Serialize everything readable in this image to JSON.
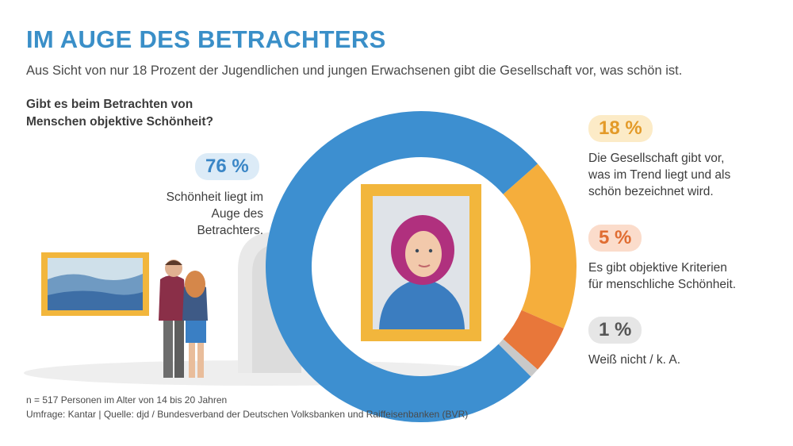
{
  "header": {
    "title": "IM AUGE DES BETRACHTERS",
    "subtitle": "Aus Sicht von nur 18 Prozent der Jugendlichen und jungen Erwachsenen gibt die Gesellschaft vor, was schön ist."
  },
  "question": {
    "line1": "Gibt es beim Betrachten von",
    "line2": "Menschen objektive Schönheit?"
  },
  "chart_data": {
    "type": "pie",
    "title": "",
    "slices": [
      {
        "label_value": "76 %",
        "value": 76,
        "desc": [
          "Schönheit liegt im",
          "Auge des Betrachters."
        ],
        "color": "#3d8fd0",
        "badge_bg": "#dcebf7",
        "badge_color": "#3a86c6"
      },
      {
        "label_value": "18 %",
        "value": 18,
        "desc": [
          "Die Gesellschaft gibt vor,",
          "was im Trend liegt und als",
          "schön bezeichnet wird."
        ],
        "color": "#f5ae3c",
        "badge_bg": "#fcebc7",
        "badge_color": "#e39a28"
      },
      {
        "label_value": "5 %",
        "value": 5,
        "desc": [
          "Es gibt objektive Kriterien",
          "für menschliche Schönheit."
        ],
        "color": "#e8773a",
        "badge_bg": "#fbdccb",
        "badge_color": "#e06d32"
      },
      {
        "label_value": "1 %",
        "value": 1,
        "desc": [
          "Weiß nicht / k. A."
        ],
        "color": "#c9c9c9",
        "badge_bg": "#e6e6e6",
        "badge_color": "#555555"
      }
    ]
  },
  "footer": {
    "line1": "n = 517 Personen im Alter von 14 bis 20 Jahren",
    "line2": "Umfrage: Kantar | Quelle: djd / Bundesverband der Deutschen Volksbanken und Raiffeisenbanken (BVR)"
  },
  "colors": {
    "title": "#3a8fc8",
    "frame_gold": "#f2b63c",
    "background": "#ffffff"
  }
}
